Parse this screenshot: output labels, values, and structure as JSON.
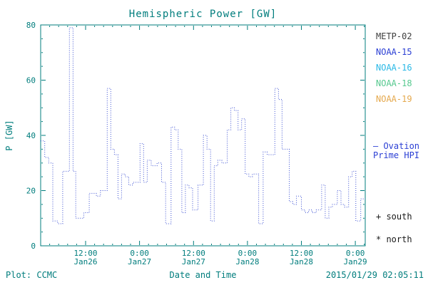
{
  "footer": {
    "credit": "Plot: CCMC",
    "timestamp": "2015/01/29 02:05:11"
  },
  "annotations": {
    "ovation": [
      "– Ovation",
      "Prime HPI"
    ],
    "ovation_color": "#2b3fd4",
    "south": "+ south",
    "north": "* north"
  },
  "chart_data": {
    "type": "line",
    "title": "Hemispheric Power [GW]",
    "xlabel": "Date and Time",
    "ylabel": "P [GW]",
    "y_range": [
      0,
      80
    ],
    "y_major": 20,
    "y_minor": 5,
    "x_range": [
      0,
      72.2
    ],
    "x_minor": 2,
    "x_ticks": [
      {
        "h": 10,
        "label": [
          "12:00",
          "Jan26"
        ]
      },
      {
        "h": 22,
        "label": [
          "0:00",
          "Jan27"
        ]
      },
      {
        "h": 34,
        "label": [
          "12:00",
          "Jan27"
        ]
      },
      {
        "h": 46,
        "label": [
          "0:00",
          "Jan28"
        ]
      },
      {
        "h": 58,
        "label": [
          "12:00",
          "Jan28"
        ]
      },
      {
        "h": 70,
        "label": [
          "0:00",
          "Jan29"
        ]
      }
    ],
    "legend": [
      {
        "label": "METP-02",
        "color": "#3f3f3f"
      },
      {
        "label": "NOAA-15",
        "color": "#2b3fd4"
      },
      {
        "label": "NOAA-16",
        "color": "#2bb9e6"
      },
      {
        "label": "NOAA-18",
        "color": "#57c98f"
      },
      {
        "label": "NOAA-19",
        "color": "#e5a94e"
      }
    ],
    "colors": {
      "axis": "#007d7d",
      "line": "#3c50d2"
    },
    "series": [
      {
        "name": "Ovation Prime HPI",
        "style": "dotted-step",
        "points": [
          [
            0,
            38
          ],
          [
            0.9,
            32
          ],
          [
            1.8,
            30
          ],
          [
            2.7,
            9
          ],
          [
            3.8,
            8
          ],
          [
            4.9,
            27
          ],
          [
            6.4,
            79
          ],
          [
            7.2,
            27
          ],
          [
            7.8,
            10
          ],
          [
            9.6,
            12
          ],
          [
            10.8,
            19
          ],
          [
            12.4,
            18
          ],
          [
            13.3,
            20
          ],
          [
            14.8,
            57
          ],
          [
            15.6,
            35
          ],
          [
            16.4,
            33
          ],
          [
            17.2,
            17
          ],
          [
            18.0,
            26
          ],
          [
            18.8,
            25
          ],
          [
            19.6,
            22
          ],
          [
            20.5,
            23
          ],
          [
            22.1,
            37
          ],
          [
            22.9,
            23
          ],
          [
            23.7,
            31
          ],
          [
            24.6,
            29
          ],
          [
            25.9,
            30
          ],
          [
            26.9,
            23
          ],
          [
            27.8,
            8
          ],
          [
            29.0,
            43
          ],
          [
            29.8,
            42
          ],
          [
            30.6,
            35
          ],
          [
            31.4,
            12
          ],
          [
            32.2,
            22
          ],
          [
            33.0,
            21
          ],
          [
            33.8,
            13
          ],
          [
            35.0,
            22
          ],
          [
            36.2,
            40
          ],
          [
            37.0,
            35
          ],
          [
            37.8,
            9
          ],
          [
            38.6,
            29
          ],
          [
            39.4,
            31
          ],
          [
            40.3,
            30
          ],
          [
            41.5,
            42
          ],
          [
            42.3,
            50
          ],
          [
            43.1,
            49
          ],
          [
            43.9,
            42
          ],
          [
            44.7,
            46
          ],
          [
            45.5,
            26
          ],
          [
            46.3,
            25
          ],
          [
            47.1,
            26
          ],
          [
            48.5,
            8
          ],
          [
            49.5,
            34
          ],
          [
            50.4,
            33
          ],
          [
            52.1,
            57
          ],
          [
            52.9,
            53
          ],
          [
            53.7,
            35
          ],
          [
            55.3,
            16
          ],
          [
            56.1,
            15
          ],
          [
            56.9,
            18
          ],
          [
            58.0,
            13
          ],
          [
            58.8,
            12
          ],
          [
            59.6,
            13
          ],
          [
            60.4,
            12
          ],
          [
            61.3,
            13
          ],
          [
            62.5,
            22
          ],
          [
            63.3,
            10
          ],
          [
            64.1,
            14
          ],
          [
            64.9,
            15
          ],
          [
            66.0,
            20
          ],
          [
            66.8,
            15
          ],
          [
            67.6,
            14
          ],
          [
            68.5,
            25
          ],
          [
            69.3,
            27
          ],
          [
            70.1,
            9
          ],
          [
            71.2,
            17
          ],
          [
            72.2,
            17
          ]
        ]
      }
    ]
  }
}
